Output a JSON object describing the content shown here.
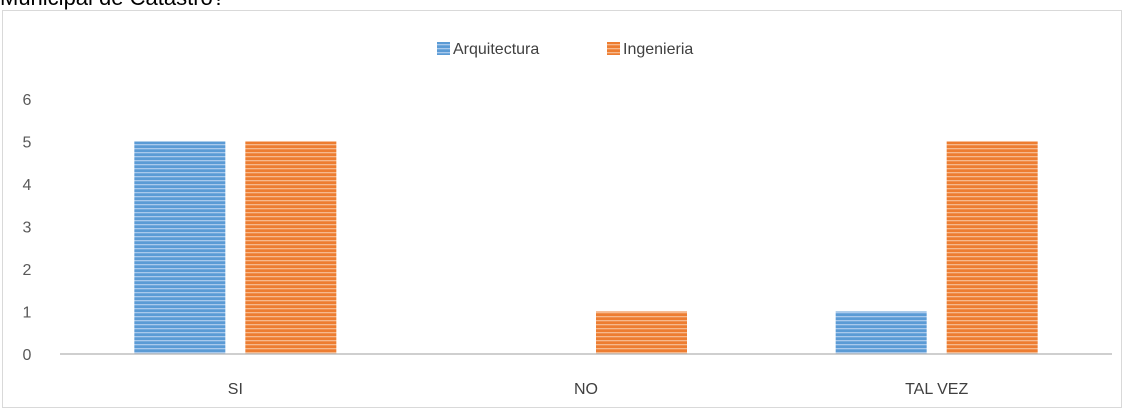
{
  "caption": "Municipal de Catastro?",
  "chart_data": {
    "type": "bar",
    "categories": [
      "SI",
      "NO",
      "TAL VEZ"
    ],
    "series": [
      {
        "name": "Arquitectura",
        "values": [
          5,
          0,
          1
        ]
      },
      {
        "name": "Ingenieria",
        "values": [
          5,
          1,
          5
        ]
      }
    ],
    "ylim": [
      0,
      6
    ],
    "yticks": [
      0,
      1,
      2,
      3,
      4,
      5,
      6
    ],
    "grid": false,
    "legend": "top-center",
    "colors": {
      "Arquitectura": "#5b9bd5",
      "Arquitectura_stripe": "#a9c9ec",
      "Ingenieria": "#ed7d31",
      "Ingenieria_stripe": "#f6b98d"
    }
  }
}
